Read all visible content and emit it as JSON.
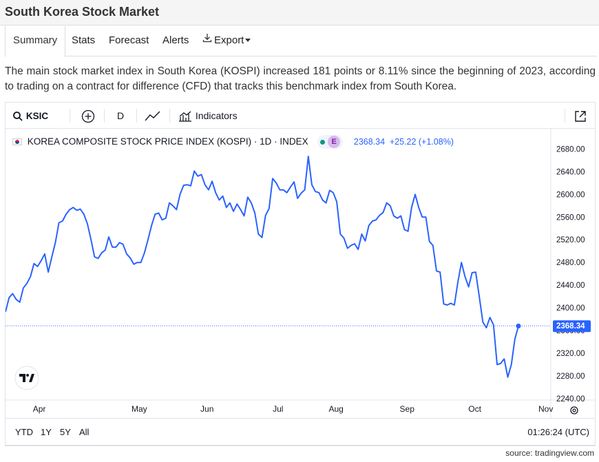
{
  "page": {
    "title": "South Korea Stock Market"
  },
  "tabs": [
    {
      "label": "Summary",
      "active": true
    },
    {
      "label": "Stats"
    },
    {
      "label": "Forecast"
    },
    {
      "label": "Alerts"
    },
    {
      "label": "Export",
      "icon": "download-icon"
    }
  ],
  "description": "The main stock market index in South Korea (KOSPI) increased 181 points or 8.11% since the beginning of 2023, according to trading on a contract for difference (CFD) that tracks this benchmark index from South Korea.",
  "toolbar": {
    "symbol": "KSIC",
    "interval": "D",
    "indicators_label": "Indicators"
  },
  "legend": {
    "name": "KOREA COMPOSITE STOCK PRICE INDEX (KOSPI) · 1D · INDEX",
    "badge": "E",
    "price": "2368.34",
    "change": "+25.22 (+1.08%)"
  },
  "range": {
    "buttons": [
      "YTD",
      "1Y",
      "5Y",
      "All"
    ],
    "time": "01:26:24 (UTC)"
  },
  "source": "source: tradingview.com",
  "colors": {
    "line": "#2962ff",
    "price_tag": "#2962ff",
    "accent_active": "#089981"
  },
  "chart_data": {
    "type": "line",
    "title": "KOREA COMPOSITE STOCK PRICE INDEX (KOSPI) · 1D · INDEX",
    "y_ticks": [
      "2680.00",
      "2640.00",
      "2600.00",
      "2560.00",
      "2520.00",
      "2480.00",
      "2440.00",
      "2400.00",
      "2360.00",
      "2320.00",
      "2280.00",
      "2240.00"
    ],
    "x_ticks": [
      "Apr",
      "May",
      "Jun",
      "Jul",
      "Aug",
      "Sep",
      "Oct",
      "Nov"
    ],
    "ylim": [
      2240,
      2695
    ],
    "last_price_label": "2368.34",
    "series": [
      {
        "values": [
          2393,
          2418,
          2425,
          2415,
          2410,
          2435,
          2443,
          2455,
          2478,
          2473,
          2483,
          2495,
          2463,
          2490,
          2515,
          2550,
          2553,
          2565,
          2573,
          2577,
          2572,
          2574,
          2565,
          2548,
          2520,
          2490,
          2487,
          2497,
          2502,
          2525,
          2507,
          2507,
          2515,
          2512,
          2495,
          2488,
          2477,
          2480,
          2480,
          2497,
          2520,
          2545,
          2565,
          2567,
          2555,
          2558,
          2585,
          2580,
          2573,
          2600,
          2616,
          2617,
          2615,
          2641,
          2632,
          2635,
          2617,
          2608,
          2623,
          2603,
          2590,
          2597,
          2577,
          2585,
          2570,
          2583,
          2573,
          2562,
          2595,
          2585,
          2567,
          2530,
          2524,
          2563,
          2575,
          2628,
          2620,
          2608,
          2608,
          2603,
          2613,
          2622,
          2593,
          2602,
          2608,
          2667,
          2617,
          2605,
          2603,
          2590,
          2585,
          2607,
          2603,
          2587,
          2530,
          2523,
          2505,
          2510,
          2513,
          2503,
          2530,
          2518,
          2545,
          2553,
          2555,
          2563,
          2568,
          2585,
          2580,
          2562,
          2558,
          2562,
          2538,
          2535,
          2577,
          2600,
          2577,
          2560,
          2560,
          2517,
          2510,
          2465,
          2463,
          2407,
          2405,
          2408,
          2405,
          2445,
          2480,
          2455,
          2437,
          2462,
          2463,
          2420,
          2375,
          2365,
          2383,
          2370,
          2300,
          2302,
          2310,
          2278,
          2300,
          2345,
          2368
        ]
      }
    ]
  }
}
